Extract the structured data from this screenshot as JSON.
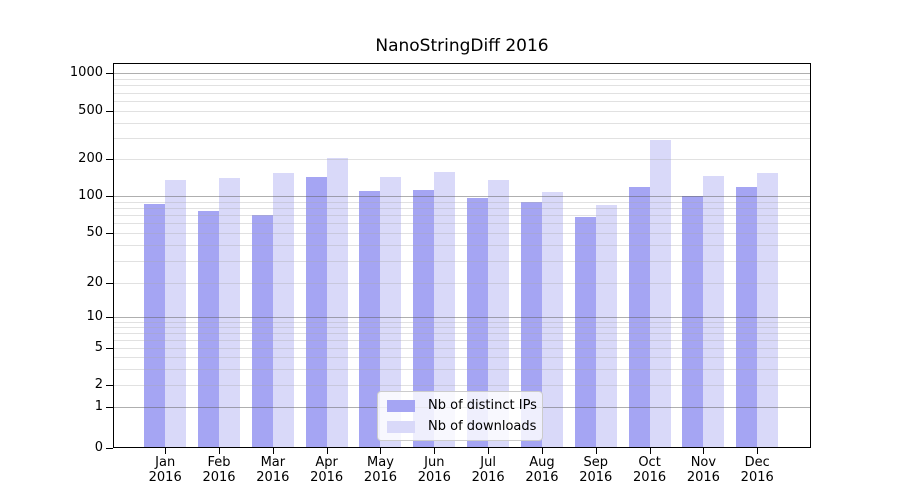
{
  "title": "NanoStringDiff 2016",
  "legend": {
    "items": [
      {
        "label": "Nb of distinct IPs",
        "series": "ips"
      },
      {
        "label": "Nb of downloads",
        "series": "downloads"
      }
    ]
  },
  "colors": {
    "ips_bar": "#a5a5f3",
    "downloads_bar": "#d9d9f9",
    "grid_major": "#afafaf",
    "grid_minor": "#e3e3e3",
    "axis": "#000000",
    "legend_border": "#cccccc",
    "background": "#ffffff"
  },
  "chart_data": {
    "type": "bar",
    "title": "NanoStringDiff 2016",
    "categories": [
      "Jan 2016",
      "Feb 2016",
      "Mar 2016",
      "Apr 2016",
      "May 2016",
      "Jun 2016",
      "Jul 2016",
      "Aug 2016",
      "Sep 2016",
      "Oct 2016",
      "Nov 2016",
      "Dec 2016"
    ],
    "x_tick_top": [
      "Jan",
      "Feb",
      "Mar",
      "Apr",
      "May",
      "Jun",
      "Jul",
      "Aug",
      "Sep",
      "Oct",
      "Nov",
      "Dec"
    ],
    "x_tick_bottom": "2016",
    "series": [
      {
        "name": "Nb of distinct IPs",
        "key": "ips",
        "values": [
          86,
          76,
          70,
          144,
          110,
          112,
          97,
          90,
          68,
          119,
          100,
          118
        ]
      },
      {
        "name": "Nb of downloads",
        "key": "downloads",
        "values": [
          134,
          141,
          155,
          204,
          142,
          158,
          134,
          107,
          85,
          290,
          146,
          155
        ]
      }
    ],
    "yscale": "log",
    "yticks": [
      0,
      1,
      2,
      5,
      10,
      20,
      50,
      100,
      200,
      500,
      1000
    ],
    "ylim": [
      0,
      1200
    ],
    "grid": "on",
    "legend_position": "lower center"
  }
}
